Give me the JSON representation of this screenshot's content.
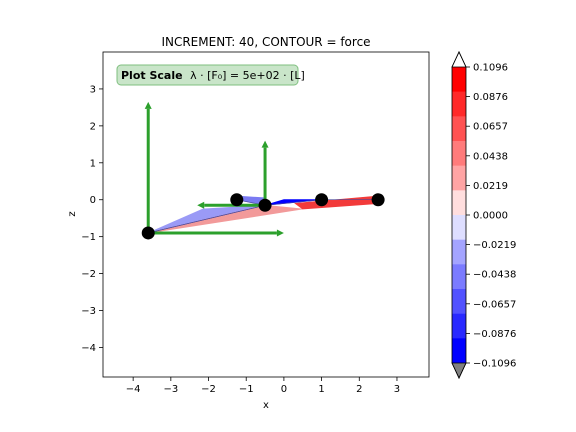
{
  "chart_data": {
    "type": "line",
    "title": "INCREMENT: 40, CONTOUR = force",
    "xlabel": "x",
    "ylabel": "z",
    "xlim": [
      -4.8,
      3.85
    ],
    "ylim": [
      -4.8,
      4.0
    ],
    "xticks": [
      -4,
      -3,
      -2,
      -1,
      0,
      1,
      2,
      3
    ],
    "yticks": [
      -4,
      -3,
      -2,
      -1,
      0,
      1,
      2,
      3
    ],
    "grid": false,
    "annotation": {
      "bold": "Plot Scale",
      "text": "λ · [F₀] =  5e+02 · [L]",
      "box_color": "#c9e5c9",
      "box_edge": "#7fbf7f"
    },
    "nodes": [
      {
        "x": -3.6,
        "z": -0.9
      },
      {
        "x": -1.25,
        "z": 0.0
      },
      {
        "x": -0.5,
        "z": -0.15
      },
      {
        "x": 1.0,
        "z": 0.0
      },
      {
        "x": 2.5,
        "z": 0.0
      }
    ],
    "elements": [
      {
        "from": 0,
        "to": 2,
        "force": -0.04,
        "color": "#9a9af6",
        "polygon": [
          [
            -3.6,
            -0.9
          ],
          [
            -2.15,
            -0.25
          ],
          [
            -0.5,
            -0.15
          ]
        ]
      },
      {
        "from": 0,
        "to": 2,
        "force": 0.03,
        "color": "#f29a9a",
        "polygon": [
          [
            -3.6,
            -0.9
          ],
          [
            -0.5,
            -0.15
          ],
          [
            0.5,
            -0.25
          ]
        ]
      },
      {
        "from": 1,
        "to": 2,
        "force": -0.06,
        "color": "#7a7af2",
        "polygon": [
          [
            -1.25,
            0.0
          ],
          [
            -0.5,
            -0.15
          ],
          [
            -0.5,
            0.05
          ],
          [
            -1.25,
            0.1
          ]
        ]
      },
      {
        "from": 2,
        "to": 3,
        "force": -0.09,
        "color": "#0000ff",
        "polygon": [
          [
            -0.5,
            -0.15
          ],
          [
            1.0,
            0.0
          ],
          [
            0.0,
            0.0
          ]
        ]
      },
      {
        "from": 3,
        "to": 4,
        "force": 0.09,
        "color": "#f23a3a",
        "polygon": [
          [
            0.5,
            -0.25
          ],
          [
            2.55,
            -0.1
          ],
          [
            2.5,
            0.1
          ],
          [
            0.3,
            -0.1
          ]
        ]
      }
    ],
    "arrows": [
      {
        "x0": -3.6,
        "z0": -0.9,
        "x1": -3.6,
        "z1": 2.65
      },
      {
        "x0": -3.6,
        "z0": -0.9,
        "x1": 0.0,
        "z1": -0.9
      },
      {
        "x0": -0.5,
        "z0": -0.15,
        "x1": -0.5,
        "z1": 1.6
      },
      {
        "x0": -0.5,
        "z0": -0.15,
        "x1": -2.3,
        "z1": -0.15
      }
    ],
    "arrow_color": "#2ca02c",
    "node_color": "#000000",
    "colorbar": {
      "ticks": [
        "0.1096",
        "0.0876",
        "0.0657",
        "0.0438",
        "0.0219",
        "0.0000",
        "−0.0219",
        "−0.0438",
        "−0.0657",
        "−0.0876",
        "−0.1096"
      ],
      "levels": [
        "#ff0000",
        "#ff2929",
        "#ff5252",
        "#ff7b7b",
        "#ffa4a4",
        "#ffdede",
        "#dedeff",
        "#a4a4ff",
        "#7b7bff",
        "#5252ff",
        "#2929ff",
        "#0000ff"
      ],
      "extend_top": "#ffffff",
      "extend_bottom": "#808080"
    }
  }
}
